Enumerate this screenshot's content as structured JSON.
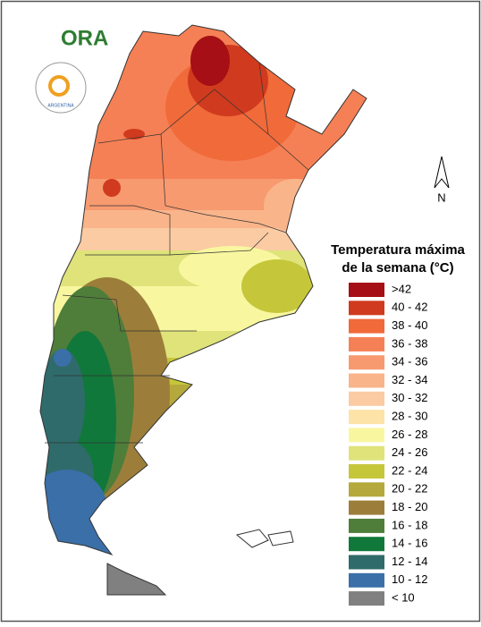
{
  "logo": {
    "name": "ORA",
    "country": "ARGENTINA"
  },
  "north_label": "N",
  "legend": {
    "title": [
      "Temperatura máxima",
      "de la semana (°C)"
    ],
    "items": [
      {
        "label": ">42",
        "color": "#a50f15"
      },
      {
        "label": "40 - 42",
        "color": "#d03a1e"
      },
      {
        "label": "38 - 40",
        "color": "#f06a3a"
      },
      {
        "label": "36 - 38",
        "color": "#f58055"
      },
      {
        "label": "34 - 36",
        "color": "#f79a70"
      },
      {
        "label": "32 - 34",
        "color": "#f9b48a"
      },
      {
        "label": "30 - 32",
        "color": "#fbcba3"
      },
      {
        "label": "28 - 30",
        "color": "#fde3a8"
      },
      {
        "label": "26 - 28",
        "color": "#f8f7a0"
      },
      {
        "label": "24 - 26",
        "color": "#dfe37a"
      },
      {
        "label": "22 - 24",
        "color": "#c6c63a"
      },
      {
        "label": "20 - 22",
        "color": "#b5a93d"
      },
      {
        "label": "18 - 20",
        "color": "#9c7e3a"
      },
      {
        "label": "16 - 18",
        "color": "#4f7d3a"
      },
      {
        "label": "14 - 16",
        "color": "#10783a"
      },
      {
        "label": "12 - 14",
        "color": "#2f6b6b"
      },
      {
        "label": "10 - 12",
        "color": "#3a6fa8"
      },
      {
        "label": "< 10",
        "color": "#808080"
      }
    ]
  }
}
